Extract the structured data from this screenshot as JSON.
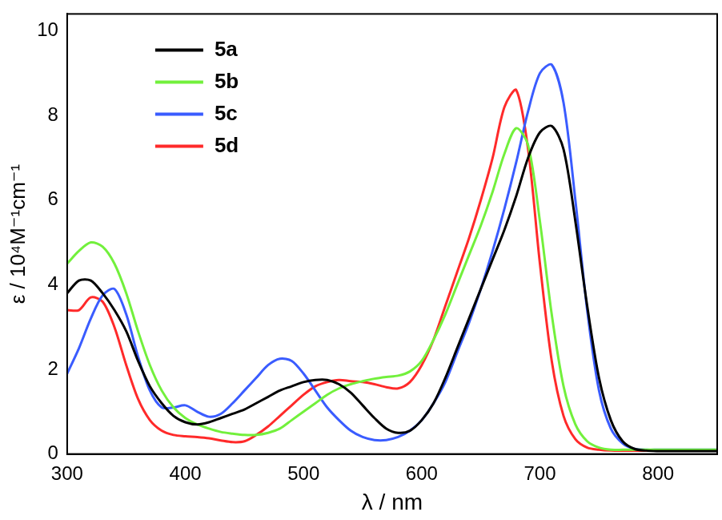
{
  "chart_data": {
    "type": "line",
    "x_label": "λ / nm",
    "y_label": "ε / 10⁴M⁻¹cm⁻¹",
    "x": [
      300,
      310,
      320,
      330,
      340,
      350,
      360,
      370,
      380,
      390,
      400,
      410,
      420,
      430,
      440,
      450,
      460,
      470,
      480,
      490,
      500,
      510,
      520,
      530,
      540,
      550,
      560,
      570,
      580,
      590,
      600,
      610,
      620,
      630,
      640,
      650,
      660,
      670,
      680,
      690,
      700,
      710,
      720,
      730,
      740,
      750,
      760,
      770,
      780,
      790,
      800,
      810,
      820,
      830,
      840,
      850
    ],
    "series": [
      {
        "name": "5a",
        "color": "#000000",
        "values": [
          3.8,
          4.1,
          4.1,
          3.8,
          3.4,
          2.9,
          2.2,
          1.6,
          1.2,
          0.9,
          0.75,
          0.7,
          0.75,
          0.85,
          0.95,
          1.05,
          1.2,
          1.35,
          1.5,
          1.6,
          1.7,
          1.75,
          1.75,
          1.65,
          1.45,
          1.15,
          0.85,
          0.6,
          0.5,
          0.55,
          0.8,
          1.2,
          1.8,
          2.5,
          3.2,
          3.9,
          4.6,
          5.3,
          6.1,
          7.0,
          7.6,
          7.75,
          7.2,
          5.5,
          3.5,
          1.8,
          0.8,
          0.3,
          0.12,
          0.08,
          0.07,
          0.07,
          0.07,
          0.07,
          0.07,
          0.07
        ]
      },
      {
        "name": "5b",
        "color": "#72f03c",
        "values": [
          4.5,
          4.8,
          5.0,
          4.9,
          4.5,
          3.8,
          2.9,
          2.1,
          1.5,
          1.1,
          0.85,
          0.7,
          0.6,
          0.52,
          0.48,
          0.45,
          0.45,
          0.5,
          0.6,
          0.8,
          1.0,
          1.2,
          1.4,
          1.55,
          1.65,
          1.72,
          1.78,
          1.82,
          1.85,
          1.95,
          2.2,
          2.7,
          3.3,
          4.0,
          4.7,
          5.4,
          6.2,
          7.1,
          7.7,
          7.3,
          5.5,
          3.3,
          1.6,
          0.7,
          0.3,
          0.15,
          0.1,
          0.1,
          0.1,
          0.1,
          0.1,
          0.1,
          0.1,
          0.1,
          0.1,
          0.1
        ]
      },
      {
        "name": "5c",
        "color": "#3a5cff",
        "values": [
          1.9,
          2.5,
          3.2,
          3.75,
          3.9,
          3.3,
          2.3,
          1.5,
          1.1,
          1.1,
          1.15,
          1.0,
          0.88,
          0.95,
          1.2,
          1.5,
          1.8,
          2.1,
          2.25,
          2.2,
          1.9,
          1.5,
          1.1,
          0.8,
          0.55,
          0.4,
          0.33,
          0.33,
          0.4,
          0.55,
          0.8,
          1.2,
          1.7,
          2.4,
          3.1,
          3.9,
          4.8,
          5.8,
          6.9,
          8.1,
          9.0,
          9.2,
          8.3,
          6.0,
          3.4,
          1.5,
          0.6,
          0.25,
          0.12,
          0.1,
          0.1,
          0.1,
          0.1,
          0.1,
          0.1,
          0.1
        ]
      },
      {
        "name": "5d",
        "color": "#ff2a2a",
        "values": [
          3.4,
          3.4,
          3.7,
          3.6,
          3.0,
          2.1,
          1.3,
          0.8,
          0.55,
          0.45,
          0.42,
          0.4,
          0.37,
          0.32,
          0.28,
          0.3,
          0.45,
          0.65,
          0.9,
          1.15,
          1.4,
          1.6,
          1.7,
          1.75,
          1.72,
          1.7,
          1.65,
          1.58,
          1.55,
          1.7,
          2.1,
          2.7,
          3.5,
          4.3,
          5.1,
          6.0,
          7.0,
          8.2,
          8.6,
          7.2,
          4.5,
          2.2,
          0.9,
          0.35,
          0.15,
          0.1,
          0.08,
          0.08,
          0.08,
          0.08,
          0.08,
          0.08,
          0.08,
          0.08,
          0.08,
          0.08
        ]
      }
    ],
    "xlim": [
      300,
      850
    ],
    "xticks": [
      300,
      400,
      500,
      600,
      700,
      800
    ],
    "ylim": [
      0,
      10.4
    ],
    "yticks": [
      0,
      2,
      4,
      6,
      8,
      10
    ],
    "grid": false,
    "legend": "upper left"
  }
}
